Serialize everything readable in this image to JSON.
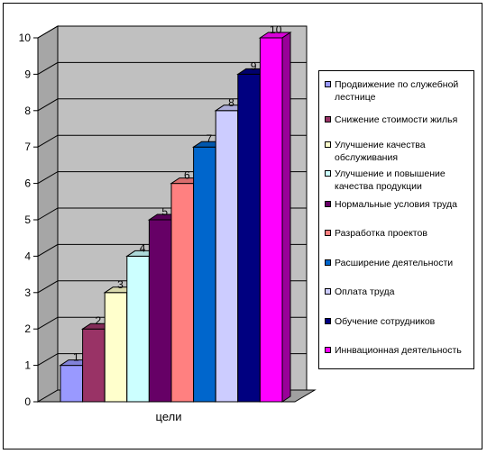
{
  "chart_data": {
    "type": "bar",
    "categories": [
      "цели"
    ],
    "xlabel": "цели",
    "ylim": [
      0,
      10
    ],
    "yticks": [
      0,
      1,
      2,
      3,
      4,
      5,
      6,
      7,
      8,
      9,
      10
    ],
    "grid": true,
    "legend_position": "right",
    "series": [
      {
        "name": "Продвижение по служебной лестнице",
        "values": [
          1
        ],
        "color": "#9999ff"
      },
      {
        "name": "Снижение стоимости жилья",
        "values": [
          2
        ],
        "color": "#993366"
      },
      {
        "name": "Улучшение качества обслуживания",
        "values": [
          3
        ],
        "color": "#ffffcc"
      },
      {
        "name": "Улучшение и повышение качества продукции",
        "values": [
          4
        ],
        "color": "#ccffff"
      },
      {
        "name": "Нормальные условия труда",
        "values": [
          5
        ],
        "color": "#660066"
      },
      {
        "name": "Разработка проектов",
        "values": [
          6
        ],
        "color": "#ff8080"
      },
      {
        "name": "Расширение деятельности",
        "values": [
          7
        ],
        "color": "#0066cc"
      },
      {
        "name": "Оплата труда",
        "values": [
          8
        ],
        "color": "#ccccff"
      },
      {
        "name": "Обучение сотрудников",
        "values": [
          9
        ],
        "color": "#000080"
      },
      {
        "name": "Иннвационная деятельность",
        "values": [
          10
        ],
        "color": "#ff00ff"
      }
    ],
    "data_labels": [
      "1",
      "2",
      "3",
      "4",
      "5",
      "6",
      "7",
      "8",
      "9",
      "10"
    ],
    "wall_color": "#c0c0c0"
  }
}
